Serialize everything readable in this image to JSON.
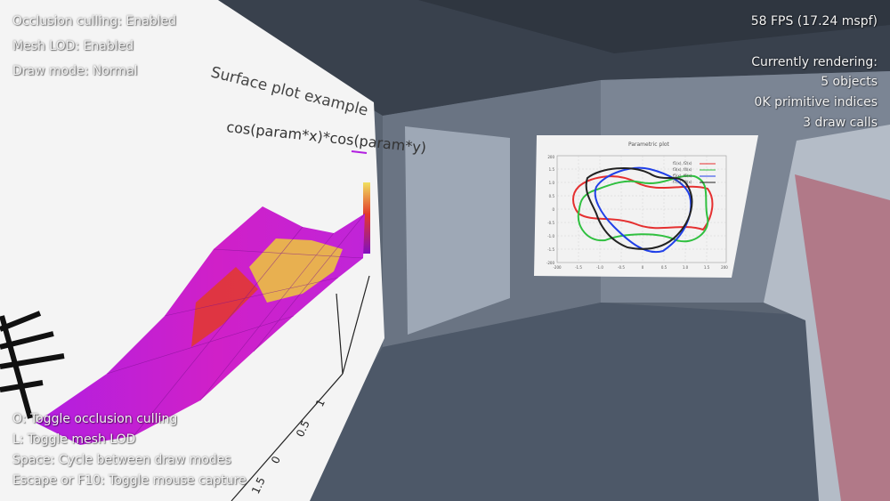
{
  "hud": {
    "top_left": [
      "Occlusion culling: Enabled",
      "Mesh LOD: Enabled",
      "Draw mode: Normal"
    ],
    "fps": "58 FPS (17.24 mspf)",
    "rendering_header": "Currently rendering:",
    "rendering_stats": [
      "5 objects",
      "0K primitive indices",
      "3 draw calls"
    ],
    "controls": [
      "O: Toggle occlusion culling",
      "L: Toggle mesh LOD",
      "Space: Cycle between draw modes",
      "Escape or F10: Toggle mouse capture"
    ]
  },
  "surface_plot": {
    "title": "Surface plot example",
    "legend": "cos(param*x)*cos(param*y)",
    "axis_ticks": [
      "0",
      "0.5",
      "1",
      "1.5"
    ]
  },
  "parametric_plot": {
    "title": "Parametric plot",
    "legend": [
      "f1(x), f2(x)",
      "f3(x), f4(x)",
      "f5(x), f6(x)",
      "f7(x), f8(x)"
    ],
    "y_ticks": [
      "200",
      "1.5",
      "1.0",
      "0.5",
      "0",
      "-0.5",
      "-1.0",
      "-1.5",
      "-200"
    ],
    "x_ticks": [
      "-200",
      "-1.5",
      "-1.0",
      "-0.5",
      "0",
      "0.5",
      "1.0",
      "1.5",
      "200"
    ]
  },
  "colors": {
    "floor": "#4d5868",
    "ceiling": "#39414d",
    "wall": "#6a7483",
    "panel": "#9ea8b6",
    "surface_magenta": "#b21fe0",
    "surface_red": "#e23a2a",
    "surface_yellow": "#f0c060"
  }
}
